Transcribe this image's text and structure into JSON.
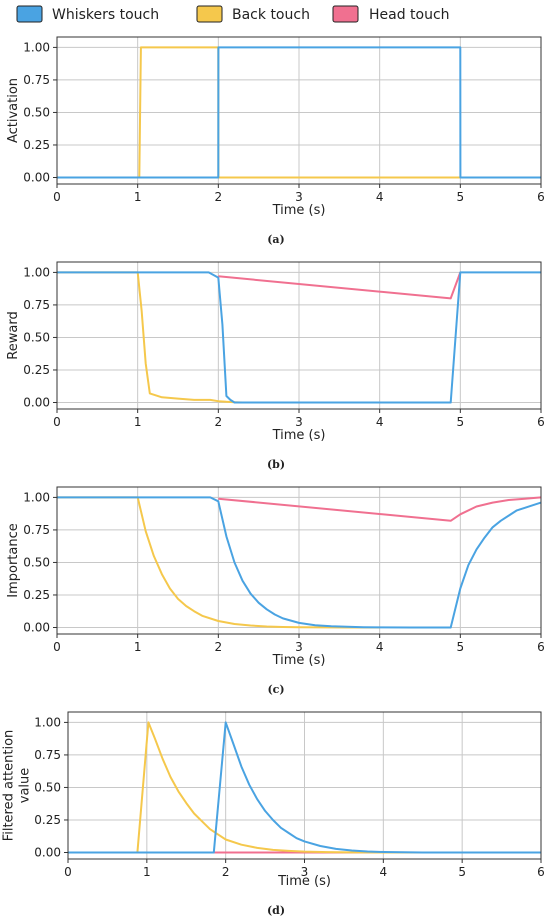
{
  "legend": {
    "items": [
      {
        "label": "Whiskers touch",
        "color": "#4aa3e2"
      },
      {
        "label": "Back touch",
        "color": "#f5c84c"
      },
      {
        "label": "Head touch",
        "color": "#f07090"
      }
    ]
  },
  "chart_data": [
    {
      "type": "line",
      "caption": "(a)",
      "xlabel": "Time (s)",
      "ylabel": "Activation",
      "xlim": [
        0,
        6
      ],
      "ylim": [
        -0.05,
        1.08
      ],
      "xticks": [
        "0",
        "1",
        "2",
        "3",
        "4",
        "5",
        "6"
      ],
      "yticks": [
        "0.00",
        "0.25",
        "0.50",
        "0.75",
        "1.00"
      ],
      "grid": true,
      "series": [
        {
          "name": "Head touch",
          "color": "#f07090",
          "x": [
            0,
            2,
            2.001,
            6
          ],
          "y": [
            0,
            0,
            0,
            0
          ]
        },
        {
          "name": "Back touch",
          "color": "#f5c84c",
          "x": [
            0,
            1.02,
            1.04,
            2.0,
            2.001,
            6
          ],
          "y": [
            0,
            0,
            1,
            1,
            0,
            0
          ]
        },
        {
          "name": "Whiskers touch",
          "color": "#4aa3e2",
          "x": [
            0,
            2.0,
            2.001,
            5.0,
            5.001,
            6
          ],
          "y": [
            0,
            0,
            1,
            1,
            0,
            0
          ]
        }
      ]
    },
    {
      "type": "line",
      "caption": "(b)",
      "xlabel": "Time (s)",
      "ylabel": "Reward",
      "xlim": [
        0,
        6
      ],
      "ylim": [
        -0.05,
        1.08
      ],
      "xticks": [
        "0",
        "1",
        "2",
        "3",
        "4",
        "5",
        "6"
      ],
      "yticks": [
        "0.00",
        "0.25",
        "0.50",
        "0.75",
        "1.00"
      ],
      "grid": true,
      "series": [
        {
          "name": "Head touch",
          "color": "#f07090",
          "x": [
            2.0,
            4.88,
            5.0
          ],
          "y": [
            0.97,
            0.8,
            1.0
          ]
        },
        {
          "name": "Back touch",
          "color": "#f5c84c",
          "x": [
            0,
            1.0,
            1.05,
            1.1,
            1.15,
            1.3,
            1.5,
            1.7,
            1.9,
            2.0,
            2.1,
            2.2,
            2.3
          ],
          "y": [
            1,
            1,
            0.7,
            0.3,
            0.07,
            0.04,
            0.03,
            0.02,
            0.02,
            0.01,
            0.005,
            0.002,
            0
          ]
        },
        {
          "name": "Whiskers touch",
          "color": "#4aa3e2",
          "x": [
            0,
            1.88,
            2.0,
            2.05,
            2.1,
            2.15,
            2.2,
            2.3,
            4.88,
            5.0,
            6.0
          ],
          "y": [
            1,
            1,
            0.96,
            0.6,
            0.05,
            0.02,
            0,
            0,
            0,
            1,
            1
          ]
        }
      ]
    },
    {
      "type": "line",
      "caption": "(c)",
      "xlabel": "Time (s)",
      "ylabel": "Importance",
      "xlim": [
        0,
        6
      ],
      "ylim": [
        -0.05,
        1.08
      ],
      "xticks": [
        "0",
        "1",
        "2",
        "3",
        "4",
        "5",
        "6"
      ],
      "yticks": [
        "0.00",
        "0.25",
        "0.50",
        "0.75",
        "1.00"
      ],
      "grid": true,
      "series": [
        {
          "name": "Head touch",
          "color": "#f07090",
          "x": [
            2.0,
            4.88,
            5.0,
            5.2,
            5.4,
            5.6,
            5.8,
            6.0
          ],
          "y": [
            0.99,
            0.82,
            0.87,
            0.93,
            0.96,
            0.98,
            0.99,
            1.0
          ]
        },
        {
          "name": "Back touch",
          "color": "#f5c84c",
          "x": [
            0,
            1.0,
            1.1,
            1.2,
            1.3,
            1.4,
            1.5,
            1.6,
            1.7,
            1.8,
            2.0,
            2.2,
            2.4,
            2.6,
            2.8,
            3.0,
            3.3,
            3.6,
            4.0
          ],
          "y": [
            1,
            1,
            0.74,
            0.55,
            0.41,
            0.3,
            0.22,
            0.165,
            0.125,
            0.09,
            0.05,
            0.027,
            0.015,
            0.008,
            0.004,
            0.002,
            0.001,
            0,
            0
          ]
        },
        {
          "name": "Whiskers touch",
          "color": "#4aa3e2",
          "x": [
            0,
            1.9,
            2.0,
            2.1,
            2.2,
            2.3,
            2.4,
            2.5,
            2.6,
            2.7,
            2.8,
            3.0,
            3.2,
            3.4,
            3.6,
            3.8,
            4.0,
            4.4,
            4.88,
            5.0,
            5.1,
            5.2,
            5.3,
            5.4,
            5.5,
            5.6,
            5.7,
            5.8,
            5.9,
            6.0
          ],
          "y": [
            1,
            1,
            0.97,
            0.7,
            0.5,
            0.36,
            0.26,
            0.19,
            0.14,
            0.1,
            0.07,
            0.035,
            0.018,
            0.009,
            0.005,
            0.002,
            0.001,
            0,
            0,
            0.3,
            0.48,
            0.6,
            0.69,
            0.77,
            0.82,
            0.86,
            0.9,
            0.92,
            0.94,
            0.96
          ]
        }
      ]
    },
    {
      "type": "line",
      "caption": "(d)",
      "xlabel": "Time (s)",
      "ylabel": "Filtered attention value",
      "xlim": [
        0,
        6
      ],
      "ylim": [
        -0.05,
        1.08
      ],
      "xticks": [
        "0",
        "1",
        "2",
        "3",
        "4",
        "5",
        "6"
      ],
      "yticks": [
        "0.00",
        "0.25",
        "0.50",
        "0.75",
        "1.00"
      ],
      "grid": true,
      "series": [
        {
          "name": "Head touch",
          "color": "#f07090",
          "x": [
            0,
            6
          ],
          "y": [
            0,
            0
          ]
        },
        {
          "name": "Back touch",
          "color": "#f5c84c",
          "x": [
            0,
            0.88,
            1.02,
            1.1,
            1.2,
            1.3,
            1.4,
            1.5,
            1.6,
            1.7,
            1.8,
            1.9,
            2.0,
            2.2,
            2.4,
            2.6,
            2.8,
            3.0,
            3.3,
            3.6,
            4.0,
            6.0
          ],
          "y": [
            0,
            0,
            1,
            0.88,
            0.72,
            0.58,
            0.47,
            0.38,
            0.3,
            0.24,
            0.18,
            0.14,
            0.1,
            0.06,
            0.035,
            0.02,
            0.012,
            0.007,
            0.003,
            0.001,
            0,
            0
          ]
        },
        {
          "name": "Whiskers touch",
          "color": "#4aa3e2",
          "x": [
            0,
            1.85,
            2.0,
            2.1,
            2.2,
            2.3,
            2.4,
            2.5,
            2.6,
            2.7,
            2.8,
            2.9,
            3.0,
            3.2,
            3.4,
            3.6,
            3.8,
            4.0,
            4.5,
            6.0
          ],
          "y": [
            0,
            0,
            1,
            0.83,
            0.66,
            0.52,
            0.41,
            0.32,
            0.25,
            0.19,
            0.15,
            0.11,
            0.085,
            0.05,
            0.028,
            0.015,
            0.008,
            0.004,
            0,
            0
          ]
        }
      ]
    }
  ]
}
